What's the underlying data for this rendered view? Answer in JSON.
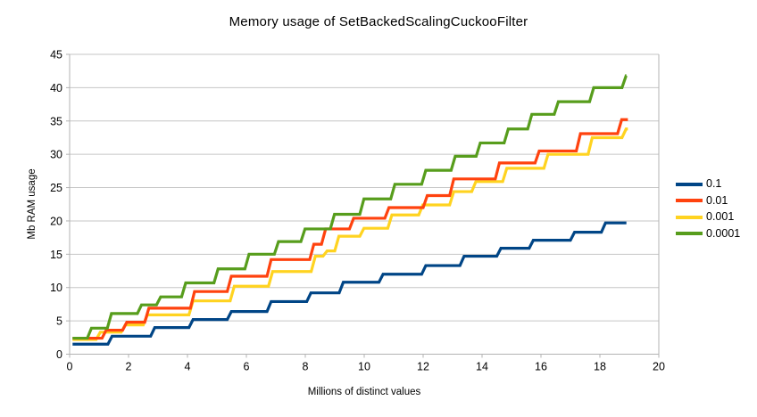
{
  "chart_data": {
    "type": "line",
    "step_style": true,
    "title": "Memory usage of SetBackedScalingCuckooFilter",
    "xlabel": "Millions of distinct values",
    "ylabel": "Mb RAM usage",
    "xlim": [
      0,
      20
    ],
    "ylim": [
      0,
      45
    ],
    "x_tick_step": 2,
    "y_tick_step": 5,
    "grid": "horizontal",
    "legend_position": "right",
    "colors": {
      "background": "#ffffff",
      "grid": "#c6c6c6",
      "axis": "#b3b3b3",
      "text": "#000000"
    },
    "legend_labels": [
      "0.1",
      "0.01",
      "0.001",
      "0.0001"
    ],
    "series": [
      {
        "name": "0.1",
        "color": "#004586",
        "x_end": 18.9,
        "points": [
          [
            0.1,
            1.5
          ],
          [
            1.3,
            2.7
          ],
          [
            2.75,
            4.0
          ],
          [
            4.05,
            5.2
          ],
          [
            5.35,
            6.4
          ],
          [
            6.7,
            7.9
          ],
          [
            8.05,
            9.2
          ],
          [
            9.15,
            10.8
          ],
          [
            10.5,
            12.0
          ],
          [
            11.95,
            13.3
          ],
          [
            13.25,
            14.7
          ],
          [
            14.5,
            15.9
          ],
          [
            15.6,
            17.1
          ],
          [
            17.0,
            18.3
          ],
          [
            18.05,
            19.7
          ]
        ]
      },
      {
        "name": "0.01",
        "color": "#ff420e",
        "x_end": 18.95,
        "points": [
          [
            0.1,
            2.4
          ],
          [
            1.1,
            3.6
          ],
          [
            1.8,
            4.8
          ],
          [
            2.55,
            6.9
          ],
          [
            4.1,
            9.4
          ],
          [
            5.35,
            11.7
          ],
          [
            6.7,
            14.2
          ],
          [
            8.15,
            16.5
          ],
          [
            8.55,
            18.8
          ],
          [
            9.5,
            20.4
          ],
          [
            10.7,
            22.0
          ],
          [
            12.0,
            23.8
          ],
          [
            12.9,
            26.3
          ],
          [
            14.45,
            28.7
          ],
          [
            15.8,
            30.5
          ],
          [
            17.2,
            33.1
          ],
          [
            18.6,
            35.2
          ]
        ]
      },
      {
        "name": "0.001",
        "color": "#ffd320",
        "x_end": 18.95,
        "points": [
          [
            0.1,
            2.2
          ],
          [
            0.9,
            3.3
          ],
          [
            1.75,
            4.4
          ],
          [
            2.5,
            5.9
          ],
          [
            4.05,
            8.0
          ],
          [
            5.45,
            10.2
          ],
          [
            6.75,
            12.4
          ],
          [
            8.2,
            14.7
          ],
          [
            8.6,
            15.5
          ],
          [
            9.0,
            17.7
          ],
          [
            9.85,
            18.9
          ],
          [
            10.8,
            20.9
          ],
          [
            11.85,
            22.4
          ],
          [
            12.9,
            24.4
          ],
          [
            13.65,
            25.9
          ],
          [
            14.7,
            27.9
          ],
          [
            16.1,
            30.0
          ],
          [
            17.6,
            32.5
          ],
          [
            18.75,
            33.8
          ]
        ]
      },
      {
        "name": "0.0001",
        "color": "#579d1c",
        "x_end": 18.9,
        "points": [
          [
            0.1,
            2.4
          ],
          [
            0.6,
            3.9
          ],
          [
            1.28,
            6.1
          ],
          [
            2.3,
            7.4
          ],
          [
            2.95,
            8.6
          ],
          [
            3.8,
            10.7
          ],
          [
            4.9,
            12.8
          ],
          [
            5.95,
            15.0
          ],
          [
            6.95,
            16.9
          ],
          [
            7.85,
            18.8
          ],
          [
            8.85,
            21.0
          ],
          [
            9.85,
            23.3
          ],
          [
            10.9,
            25.5
          ],
          [
            11.95,
            27.6
          ],
          [
            12.95,
            29.7
          ],
          [
            13.8,
            31.7
          ],
          [
            14.75,
            33.8
          ],
          [
            15.55,
            36.0
          ],
          [
            16.45,
            37.9
          ],
          [
            17.65,
            40.0
          ],
          [
            18.75,
            41.8
          ]
        ]
      }
    ]
  }
}
